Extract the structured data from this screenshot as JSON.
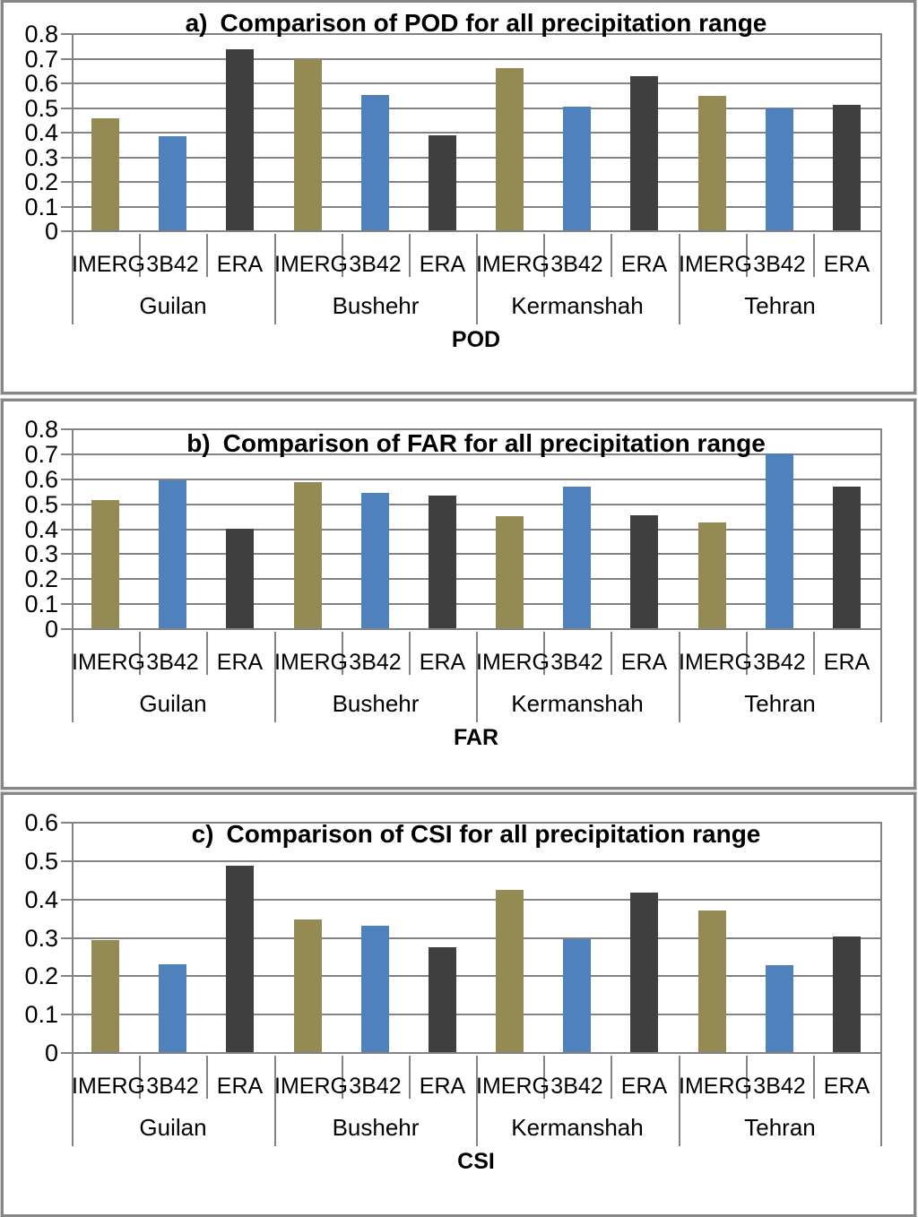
{
  "colors": {
    "imerg_bar": "#948A54",
    "b3b42_bar": "#4F81BD",
    "era_bar": "#3F3F3F",
    "line_gray": "#838383",
    "text": "#000000"
  },
  "series_labels": [
    "IMERG",
    "3B42",
    "ERA"
  ],
  "region_labels": [
    "Guilan",
    "Bushehr",
    "Kermanshah",
    "Tehran"
  ],
  "chart_data": [
    {
      "type": "bar",
      "panel": "a",
      "title_prefix": "a)",
      "title": "Comparison of POD for all precipitation range",
      "xlabel": "POD",
      "ylabel": "",
      "ylim": [
        0,
        0.8
      ],
      "ytick_labels": [
        "0.8",
        "0.7",
        "0.6",
        "0.5",
        "0.4",
        "0.3",
        "0.2",
        "0.1",
        "0"
      ],
      "grid": true,
      "legend": "none",
      "categories": [
        "Guilan",
        "Bushehr",
        "Kermanshah",
        "Tehran"
      ],
      "series": [
        {
          "name": "IMERG",
          "values": [
            0.46,
            0.7,
            0.66,
            0.55
          ]
        },
        {
          "name": "3B42",
          "values": [
            0.385,
            0.553,
            0.504,
            0.498
          ]
        },
        {
          "name": "ERA",
          "values": [
            0.74,
            0.39,
            0.63,
            0.511
          ]
        }
      ]
    },
    {
      "type": "bar",
      "panel": "b",
      "title_prefix": "b)",
      "title": "Comparison of FAR for all precipitation range",
      "xlabel": "FAR",
      "ylabel": "",
      "ylim": [
        0,
        0.8
      ],
      "ytick_labels": [
        "0.8",
        "0.7",
        "0.6",
        "0.5",
        "0.4",
        "0.3",
        "0.2",
        "0.1",
        "0"
      ],
      "grid": true,
      "legend": "none",
      "categories": [
        "Guilan",
        "Bushehr",
        "Kermanshah",
        "Tehran"
      ],
      "series": [
        {
          "name": "IMERG",
          "values": [
            0.515,
            0.59,
            0.452,
            0.426
          ]
        },
        {
          "name": "3B42",
          "values": [
            0.597,
            0.545,
            0.569,
            0.703
          ]
        },
        {
          "name": "ERA",
          "values": [
            0.4,
            0.533,
            0.454,
            0.572
          ]
        }
      ]
    },
    {
      "type": "bar",
      "panel": "c",
      "title_prefix": "c)",
      "title": "Comparison of CSI for all precipitation range",
      "xlabel": "CSI",
      "ylabel": "",
      "ylim": [
        0,
        0.6
      ],
      "ytick_labels": [
        "0.6",
        "0.5",
        "0.4",
        "0.3",
        "0.2",
        "0.1",
        "0"
      ],
      "grid": true,
      "legend": "none",
      "categories": [
        "Guilan",
        "Bushehr",
        "Kermanshah",
        "Tehran"
      ],
      "series": [
        {
          "name": "IMERG",
          "values": [
            0.293,
            0.349,
            0.424,
            0.371
          ]
        },
        {
          "name": "3B42",
          "values": [
            0.232,
            0.331,
            0.297,
            0.228
          ]
        },
        {
          "name": "ERA",
          "values": [
            0.488,
            0.275,
            0.418,
            0.304
          ]
        }
      ]
    }
  ]
}
